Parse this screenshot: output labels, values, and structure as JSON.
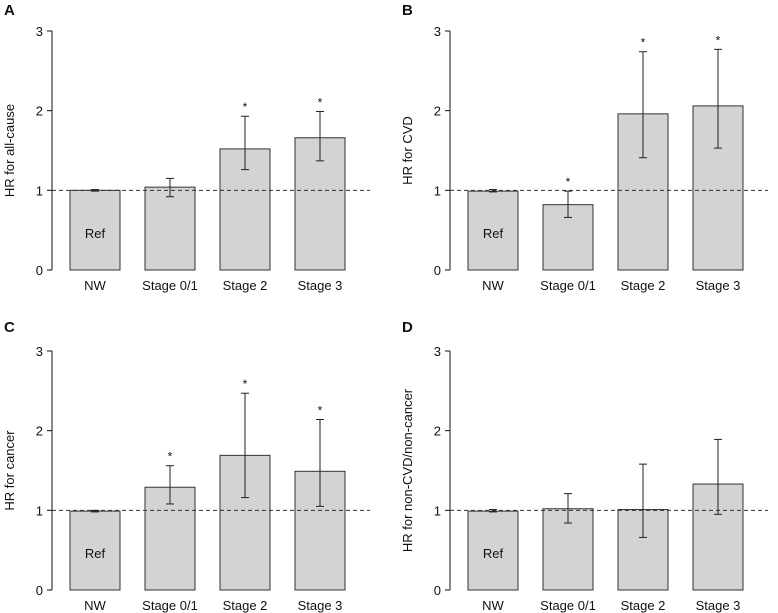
{
  "chart_data": [
    {
      "type": "bar",
      "panel": "A",
      "ylabel": "HR for all-cause",
      "categories": [
        "NW",
        "Stage 0/1",
        "Stage 2",
        "Stage 3"
      ],
      "values": [
        1.0,
        1.04,
        1.52,
        1.66
      ],
      "ci_low": [
        0.99,
        0.92,
        1.26,
        1.37
      ],
      "ci_high": [
        1.01,
        1.15,
        1.93,
        1.99
      ],
      "significant": [
        false,
        false,
        true,
        true
      ],
      "reference_label": "Ref",
      "reference_line": 1,
      "ylim": [
        0,
        3
      ],
      "yticks": [
        "0",
        "1",
        "2",
        "3"
      ]
    },
    {
      "type": "bar",
      "panel": "B",
      "ylabel": "HR for CVD",
      "categories": [
        "NW",
        "Stage 0/1",
        "Stage 2",
        "Stage 3"
      ],
      "values": [
        0.99,
        0.82,
        1.96,
        2.06
      ],
      "ci_low": [
        0.98,
        0.66,
        1.41,
        1.53
      ],
      "ci_high": [
        1.01,
        0.99,
        2.74,
        2.77
      ],
      "significant": [
        false,
        true,
        true,
        true
      ],
      "reference_label": "Ref",
      "reference_line": 1,
      "ylim": [
        0,
        3
      ],
      "yticks": [
        "0",
        "1",
        "2",
        "3"
      ]
    },
    {
      "type": "bar",
      "panel": "C",
      "ylabel": "HR for cancer",
      "categories": [
        "NW",
        "Stage 0/1",
        "Stage 2",
        "Stage 3"
      ],
      "values": [
        0.99,
        1.29,
        1.69,
        1.49
      ],
      "ci_low": [
        0.98,
        1.08,
        1.16,
        1.05
      ],
      "ci_high": [
        1.0,
        1.56,
        2.47,
        2.14
      ],
      "significant": [
        false,
        true,
        true,
        true
      ],
      "reference_label": "Ref",
      "reference_line": 1,
      "ylim": [
        0,
        3
      ],
      "yticks": [
        "0",
        "1",
        "2",
        "3"
      ]
    },
    {
      "type": "bar",
      "panel": "D",
      "ylabel": "HR for non-CVD/non-cancer",
      "categories": [
        "NW",
        "Stage 0/1",
        "Stage 2",
        "Stage 3"
      ],
      "values": [
        0.99,
        1.02,
        1.01,
        1.33
      ],
      "ci_low": [
        0.98,
        0.84,
        0.66,
        0.95
      ],
      "ci_high": [
        1.01,
        1.21,
        1.58,
        1.89
      ],
      "significant": [
        false,
        false,
        false,
        false
      ],
      "reference_label": "Ref",
      "reference_line": 1,
      "ylim": [
        0,
        3
      ],
      "yticks": [
        "0",
        "1",
        "2",
        "3"
      ]
    }
  ]
}
